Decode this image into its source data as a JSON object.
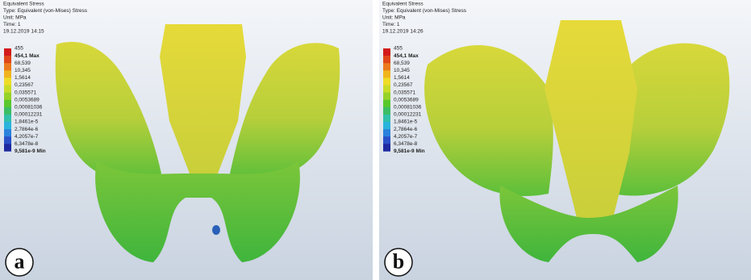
{
  "panels": [
    {
      "header": {
        "title": "Equivalent Stress",
        "type": "Type: Equivalent (von-Mises) Stress",
        "unit": "Unit: MPa",
        "time": "Time: 1",
        "date": "19.12.2019 14:15"
      },
      "legend": [
        "455",
        "454,1 Max",
        "68,539",
        "10,345",
        "1,5614",
        "0,23567",
        "0,035571",
        "0,0053689",
        "0,00081036",
        "0,00012231",
        "1,8461e-5",
        "2,7864e-6",
        "4,2057e-7",
        "6,3478e-8",
        "9,581e-9 Min"
      ],
      "label": "a"
    },
    {
      "header": {
        "title": "Equivalent Stress",
        "type": "Type: Equivalent (von-Mises) Stress",
        "unit": "Unit: MPa",
        "time": "Time: 1",
        "date": "19.12.2019 14:26"
      },
      "legend": [
        "455",
        "454,1 Max",
        "68,539",
        "10,345",
        "1,5614",
        "0,23567",
        "0,035571",
        "0,0053689",
        "0,00081036",
        "0,00012231",
        "1,8461e-5",
        "2,7864e-6",
        "4,2057e-7",
        "6,3478e-8",
        "9,581e-9 Min"
      ],
      "label": "b"
    }
  ]
}
